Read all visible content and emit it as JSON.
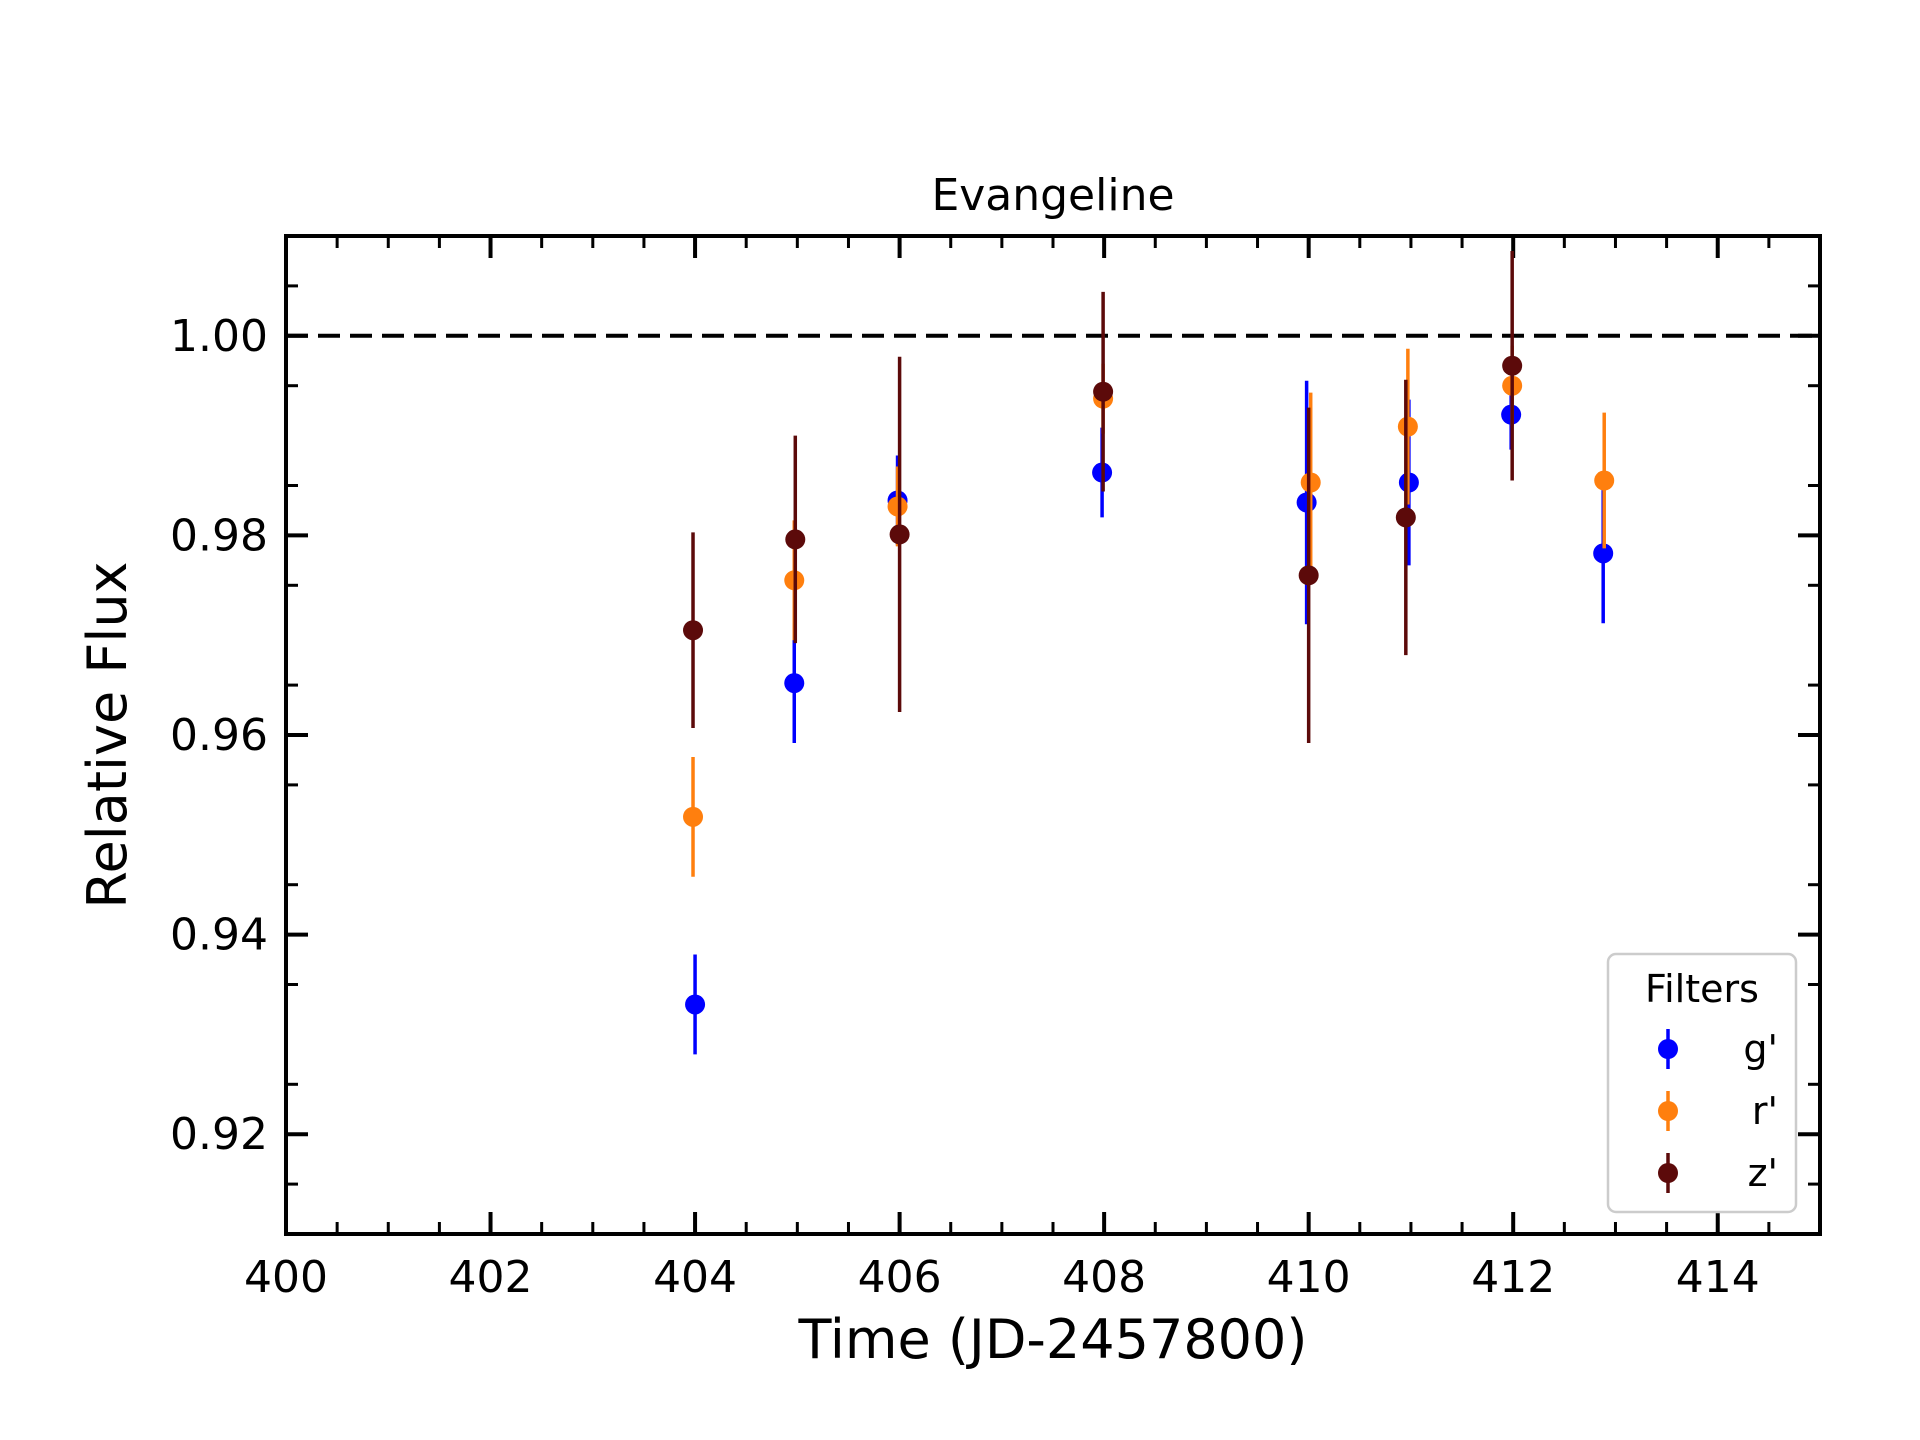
{
  "chart_data": {
    "type": "scatter",
    "title": "Evangeline",
    "xlabel": "Time (JD-2457800)",
    "ylabel": "Relative Flux",
    "xlim": [
      400,
      415
    ],
    "ylim": [
      0.91,
      1.01
    ],
    "xticks": [
      "400",
      "402",
      "404",
      "406",
      "408",
      "410",
      "412",
      "414"
    ],
    "yticks": [
      "0.92",
      "0.94",
      "0.96",
      "0.98",
      "1.00"
    ],
    "reference_line": 1.0,
    "grid": false,
    "legend": {
      "title": "Filters",
      "placement": "lower-right"
    },
    "series": [
      {
        "name": "g'",
        "color": "#0000ff",
        "points": [
          {
            "x": 404.0,
            "y": 0.933,
            "err": 0.005
          },
          {
            "x": 404.97,
            "y": 0.9652,
            "err": 0.006
          },
          {
            "x": 405.98,
            "y": 0.9835,
            "err": 0.0045
          },
          {
            "x": 407.98,
            "y": 0.9863,
            "err": 0.0045
          },
          {
            "x": 409.98,
            "y": 0.9833,
            "err": 0.0122
          },
          {
            "x": 410.98,
            "y": 0.9853,
            "err": 0.0083
          },
          {
            "x": 411.98,
            "y": 0.9921,
            "err": 0.0035
          },
          {
            "x": 412.88,
            "y": 0.9782,
            "err": 0.007
          }
        ]
      },
      {
        "name": "r'",
        "color": "#ff7f0e",
        "points": [
          {
            "x": 403.98,
            "y": 0.9518,
            "err": 0.006
          },
          {
            "x": 404.97,
            "y": 0.9755,
            "err": 0.006
          },
          {
            "x": 405.98,
            "y": 0.9829,
            "err": 0.004
          },
          {
            "x": 407.99,
            "y": 0.9937,
            "err": 0.0035
          },
          {
            "x": 410.02,
            "y": 0.9853,
            "err": 0.009
          },
          {
            "x": 410.97,
            "y": 0.9909,
            "err": 0.0078
          },
          {
            "x": 411.99,
            "y": 0.995,
            "err": 0.004
          },
          {
            "x": 412.89,
            "y": 0.9855,
            "err": 0.0068
          }
        ]
      },
      {
        "name": "z'",
        "color": "#5c0a0a",
        "points": [
          {
            "x": 403.98,
            "y": 0.9705,
            "err": 0.0098
          },
          {
            "x": 404.98,
            "y": 0.9796,
            "err": 0.0104
          },
          {
            "x": 406.0,
            "y": 0.9801,
            "err": 0.0178
          },
          {
            "x": 407.99,
            "y": 0.9944,
            "err": 0.01
          },
          {
            "x": 410.0,
            "y": 0.976,
            "err": 0.0168
          },
          {
            "x": 410.95,
            "y": 0.9818,
            "err": 0.0138
          },
          {
            "x": 411.99,
            "y": 0.997,
            "err": 0.0115
          }
        ]
      }
    ]
  }
}
